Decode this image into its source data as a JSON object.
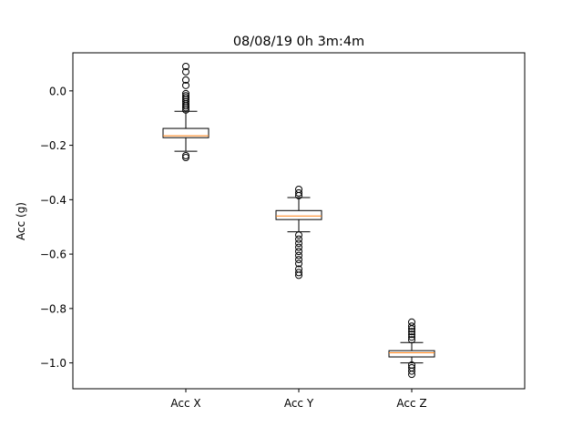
{
  "chart_data": {
    "type": "box",
    "title": "08/08/19 0h 3m:4m",
    "ylabel": "Acc (g)",
    "xlabel": "",
    "ylim": [
      -1.095,
      0.14
    ],
    "yticks": [
      "0.0",
      "−0.2",
      "−0.4",
      "−0.6",
      "−0.8",
      "−1.0"
    ],
    "ytick_values": [
      0.0,
      -0.2,
      -0.4,
      -0.6,
      -0.8,
      -1.0
    ],
    "categories": [
      "Acc X",
      "Acc Y",
      "Acc Z"
    ],
    "grid": false,
    "colors": {
      "median": "#ff7f0e",
      "box": "#000000"
    },
    "series": [
      {
        "category": "Acc X",
        "whisker_low": -0.222,
        "q1": -0.172,
        "median": -0.165,
        "q3": -0.138,
        "whisker_high": -0.075,
        "outliers": [
          -0.245,
          -0.238,
          -0.07,
          -0.062,
          -0.055,
          -0.048,
          -0.04,
          -0.032,
          -0.025,
          -0.018,
          -0.01,
          0.02,
          0.04,
          0.07,
          0.09
        ]
      },
      {
        "category": "Acc Y",
        "whisker_low": -0.518,
        "q1": -0.473,
        "median": -0.46,
        "q3": -0.44,
        "whisker_high": -0.392,
        "outliers": [
          -0.678,
          -0.668,
          -0.655,
          -0.635,
          -0.62,
          -0.605,
          -0.59,
          -0.575,
          -0.56,
          -0.545,
          -0.53,
          -0.385,
          -0.375,
          -0.362
        ]
      },
      {
        "category": "Acc Z",
        "whisker_low": -1.0,
        "q1": -0.978,
        "median": -0.963,
        "q3": -0.955,
        "whisker_high": -0.925,
        "outliers": [
          -1.042,
          -1.03,
          -1.018,
          -1.008,
          -0.915,
          -0.905,
          -0.895,
          -0.885,
          -0.875,
          -0.865,
          -0.85
        ]
      }
    ]
  }
}
